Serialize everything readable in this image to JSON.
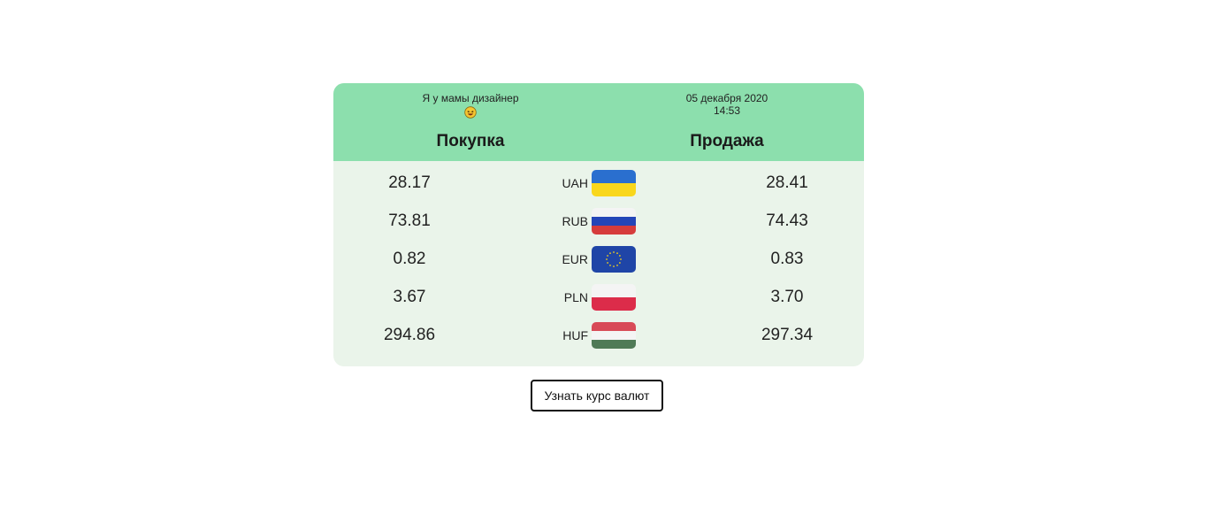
{
  "header": {
    "tagline": "Я у мамы дизайнер",
    "date": "05 декабря 2020",
    "time": "14:53",
    "buy_title": "Покупка",
    "sell_title": "Продажа"
  },
  "rates": [
    {
      "code": "UAH",
      "buy": "28.17",
      "sell": "28.41",
      "flag_icon": "ukraine-flag-icon"
    },
    {
      "code": "RUB",
      "buy": "73.81",
      "sell": "74.43",
      "flag_icon": "russia-flag-icon"
    },
    {
      "code": "EUR",
      "buy": "0.82",
      "sell": "0.83",
      "flag_icon": "eu-flag-icon"
    },
    {
      "code": "PLN",
      "buy": "3.67",
      "sell": "3.70",
      "flag_icon": "poland-flag-icon"
    },
    {
      "code": "HUF",
      "buy": "294.86",
      "sell": "297.34",
      "flag_icon": "hungary-flag-icon"
    }
  ],
  "button": {
    "label": "Узнать курс валют"
  },
  "colors": {
    "header_bg": "#8cdfad",
    "card_bg": "#eaf4ea"
  }
}
